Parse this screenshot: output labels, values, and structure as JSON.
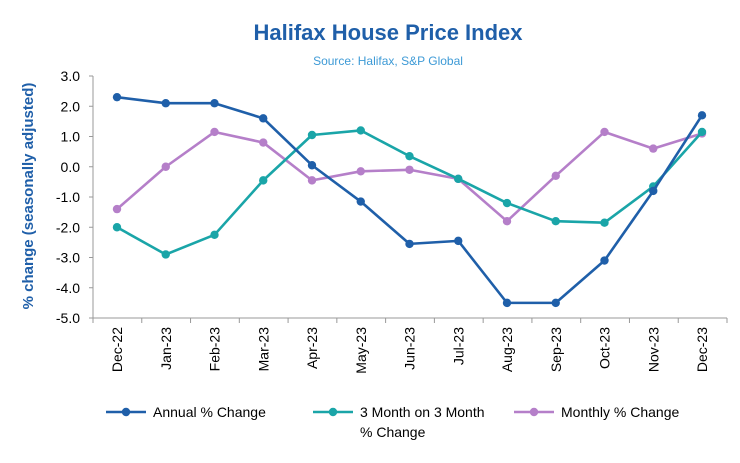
{
  "chart_data": {
    "type": "line",
    "title": "Halifax House Price Index",
    "subtitle": "Source: Halifax, S&P Global",
    "xlabel": "",
    "ylabel": "% change (seasonally adjusted)",
    "ylim": [
      -5.0,
      3.0
    ],
    "yticks": [
      "3.0",
      "2.0",
      "1.0",
      "0.0",
      "-1.0",
      "-2.0",
      "-3.0",
      "-4.0",
      "-5.0"
    ],
    "ytick_values": [
      3,
      2,
      1,
      0,
      -1,
      -2,
      -3,
      -4,
      -5
    ],
    "grid": false,
    "legend_position": "bottom",
    "categories": [
      "Dec-22",
      "Jan-23",
      "Feb-23",
      "Mar-23",
      "Apr-23",
      "May-23",
      "Jun-23",
      "Jul-23",
      "Aug-23",
      "Sep-23",
      "Oct-23",
      "Nov-23",
      "Dec-23"
    ],
    "series": [
      {
        "name": "Annual % Change",
        "legend_lines": [
          "Annual % Change"
        ],
        "color": "#1f5fa9",
        "values": [
          2.3,
          2.1,
          2.1,
          1.6,
          0.05,
          -1.15,
          -2.55,
          -2.45,
          -4.5,
          -4.5,
          -3.1,
          -0.8,
          1.7
        ]
      },
      {
        "name": "3 Month on 3 Month % Change",
        "legend_lines": [
          "3 Month on 3 Month",
          "% Change"
        ],
        "color": "#1aa5a8",
        "values": [
          -2.0,
          -2.9,
          -2.25,
          -0.45,
          1.05,
          1.2,
          0.35,
          -0.4,
          -1.2,
          -1.8,
          -1.85,
          -0.65,
          1.15
        ]
      },
      {
        "name": "Monthly % Change",
        "legend_lines": [
          "Monthly % Change"
        ],
        "color": "#b57fc9",
        "values": [
          -1.4,
          0.0,
          1.15,
          0.8,
          -0.45,
          -0.15,
          -0.1,
          -0.4,
          -1.8,
          -0.3,
          1.15,
          0.6,
          1.1
        ]
      }
    ]
  }
}
